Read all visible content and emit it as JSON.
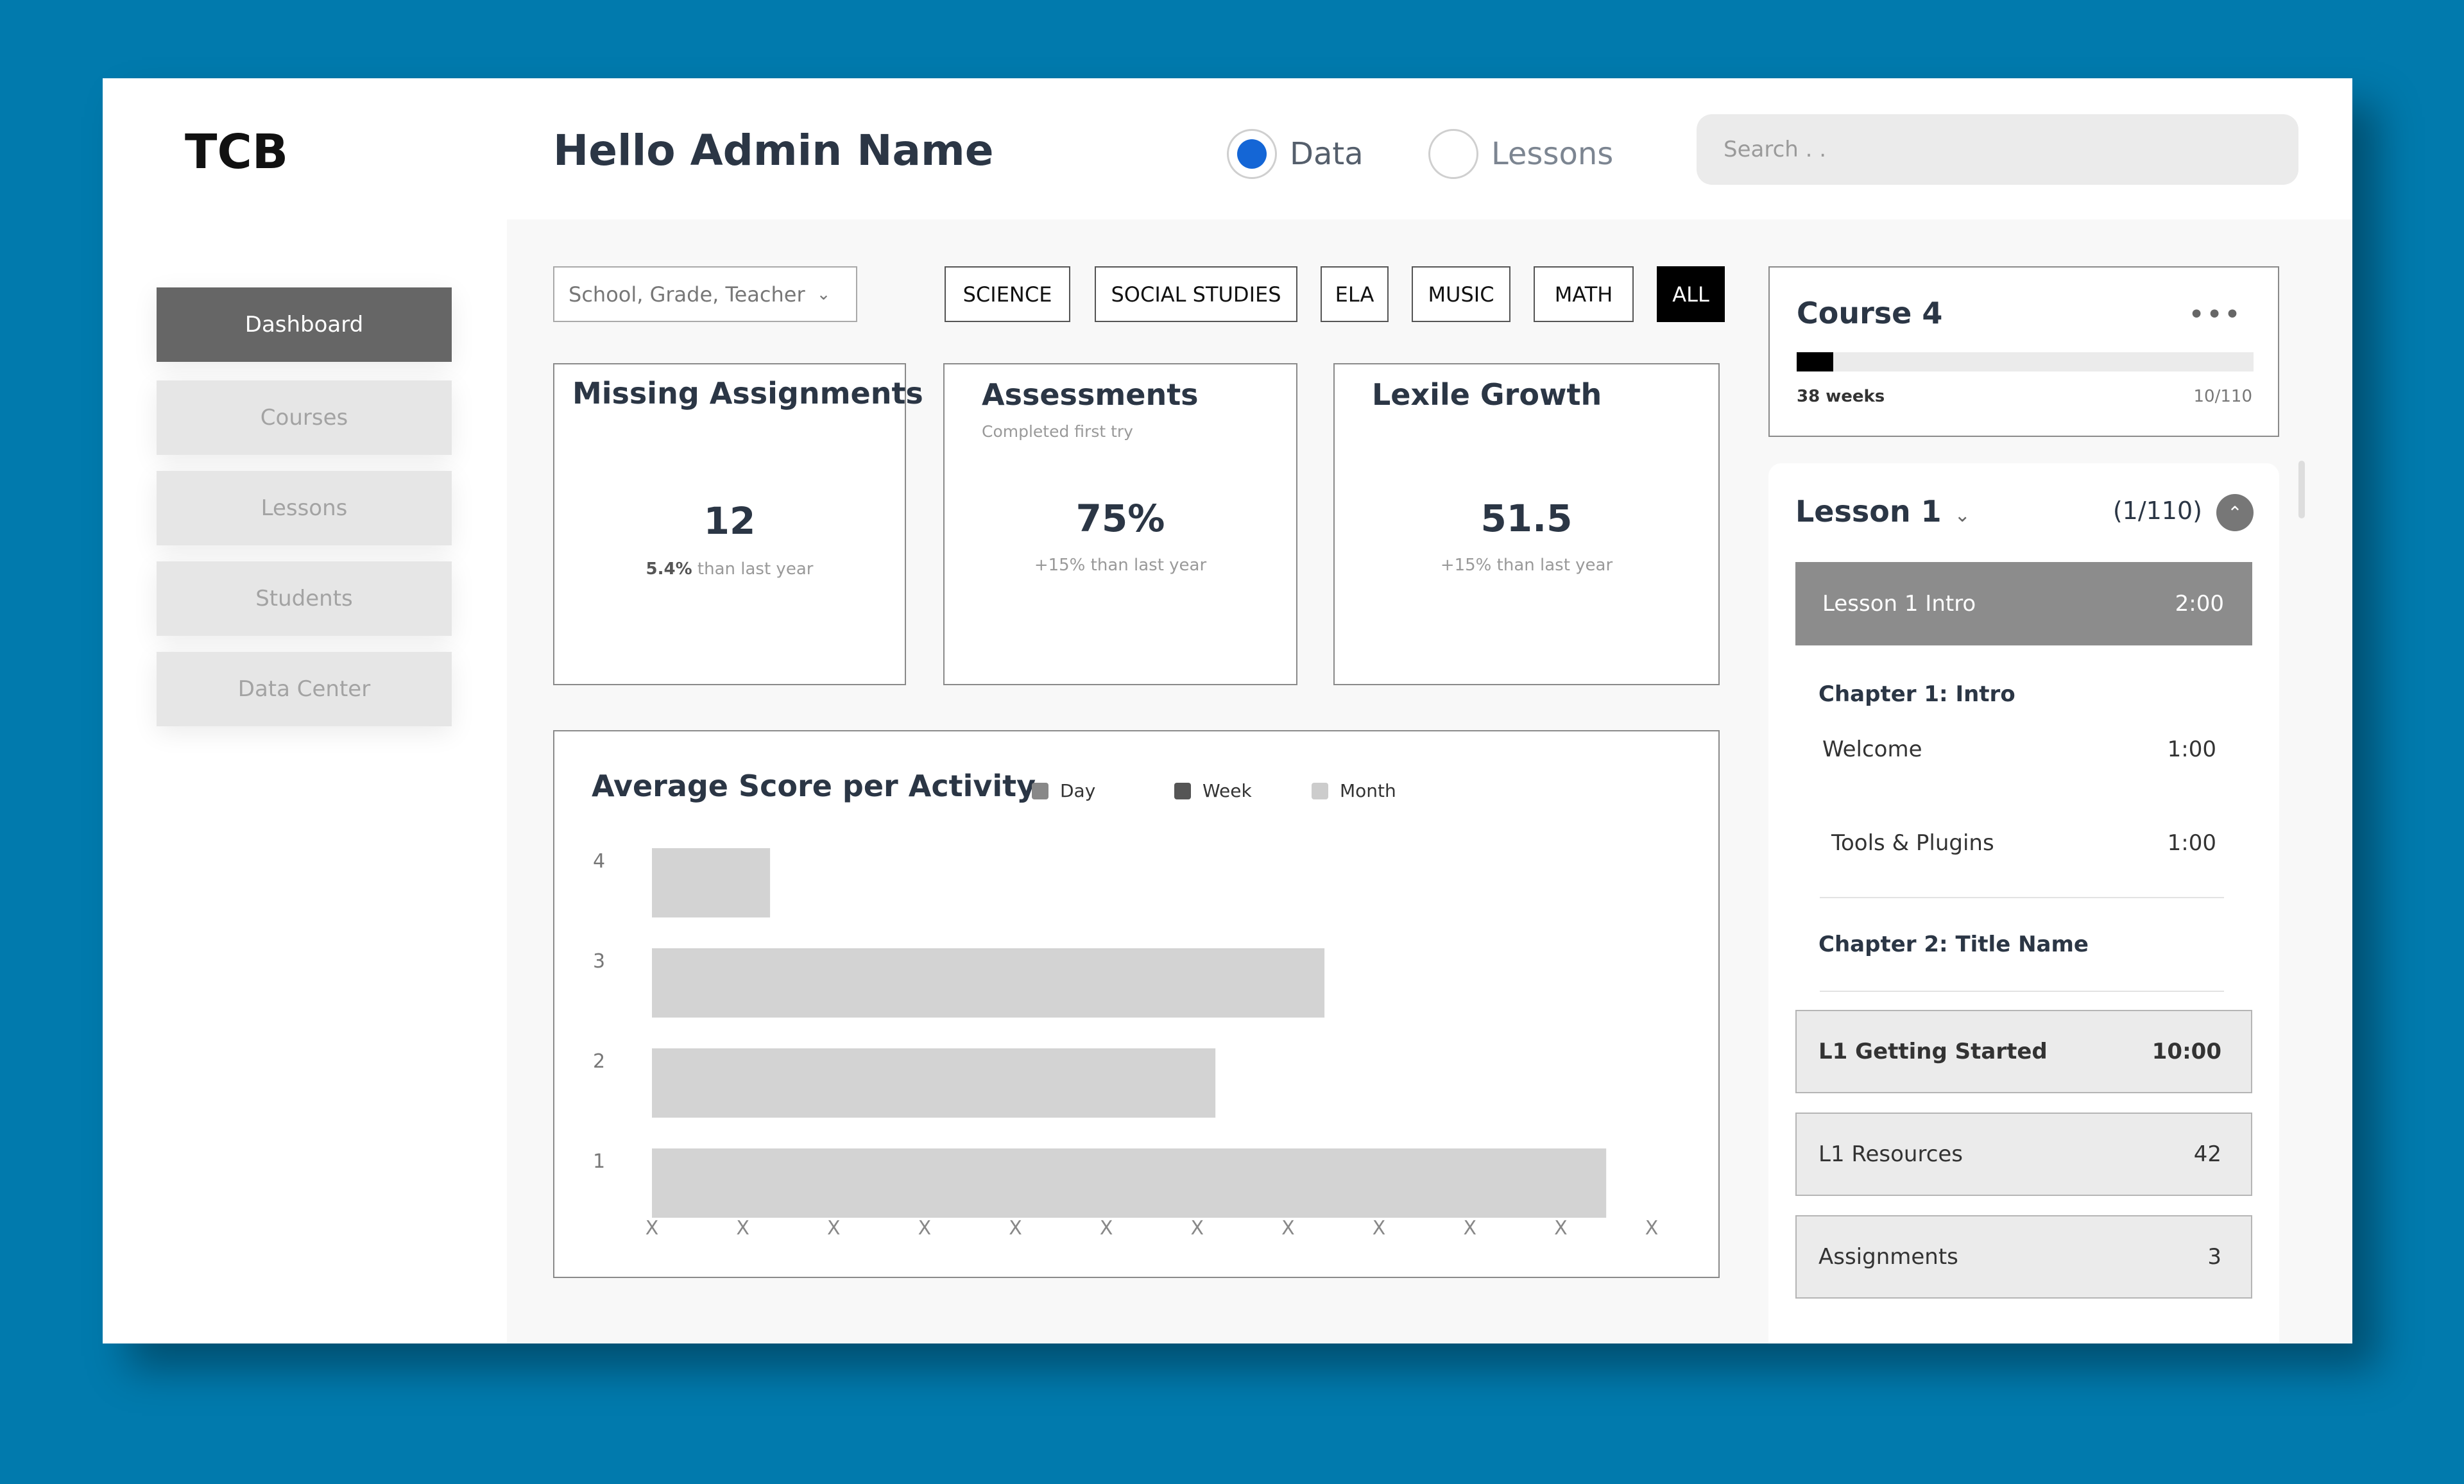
{
  "header": {
    "logo": "TCB",
    "greeting": "Hello Admin Name",
    "view_options": [
      "Data",
      "Lessons"
    ],
    "selected_view": "Data",
    "search_placeholder": "Search . ."
  },
  "sidebar": {
    "items": [
      {
        "label": "Dashboard",
        "active": true
      },
      {
        "label": "Courses",
        "active": false
      },
      {
        "label": "Lessons",
        "active": false
      },
      {
        "label": "Students",
        "active": false
      },
      {
        "label": "Data Center",
        "active": false
      }
    ]
  },
  "filters": {
    "select_label": "School, Grade, Teacher",
    "subjects": [
      "SCIENCE",
      "SOCIAL STUDIES",
      "ELA",
      "MUSIC",
      "MATH",
      "ALL"
    ],
    "active_subject": "ALL"
  },
  "cards": [
    {
      "title": "Missing Assignments",
      "subtitle": "",
      "value": "12",
      "delta_bold": "5.4%",
      "delta_text": " than last year"
    },
    {
      "title": "Assessments",
      "subtitle": "Completed first try",
      "value": "75%",
      "delta_bold": "",
      "delta_text": "+15% than last year"
    },
    {
      "title": "Lexile Growth",
      "subtitle": "",
      "value": "51.5",
      "delta_bold": "",
      "delta_text": "+15% than last year"
    }
  ],
  "chart_data": {
    "type": "bar",
    "orientation": "horizontal",
    "title": "Average Score per Activity",
    "legend": [
      {
        "name": "Day",
        "color": "#888888"
      },
      {
        "name": "Week",
        "color": "#555555"
      },
      {
        "name": "Month",
        "color": "#cccccc"
      }
    ],
    "categories": [
      "4",
      "3",
      "2",
      "1"
    ],
    "values": [
      1.3,
      7.4,
      6.2,
      10.5
    ],
    "x_ticks": [
      "X",
      "X",
      "X",
      "X",
      "X",
      "X",
      "X",
      "X",
      "X",
      "X",
      "X",
      "X"
    ],
    "xlim": [
      0,
      11
    ],
    "bar_color": "#d3d3d3",
    "grid": false
  },
  "course": {
    "title": "Course 4",
    "weeks": "38 weeks",
    "count": "10/110",
    "progress": 0.08
  },
  "lesson_panel": {
    "title": "Lesson 1",
    "count": "(1/110)",
    "intro": {
      "label": "Lesson 1 Intro",
      "duration": "2:00"
    },
    "chapter1": {
      "title": "Chapter 1: Intro",
      "items": [
        {
          "label": "Welcome",
          "duration": "1:00"
        },
        {
          "label": "Tools & Plugins",
          "duration": "1:00"
        }
      ]
    },
    "chapter2": {
      "title": "Chapter 2: Title Name",
      "items": [
        {
          "label": "L1 Getting Started",
          "value": "10:00"
        },
        {
          "label": "L1 Resources",
          "value": "42"
        },
        {
          "label": "Assignments",
          "value": "3"
        }
      ]
    }
  },
  "colors": {
    "background": "#017aad",
    "accent_radio": "#1466d6",
    "sidebar_active": "#666666",
    "sidebar_inactive": "#e6e6e6",
    "lesson_intro": "#8c8c8c"
  }
}
